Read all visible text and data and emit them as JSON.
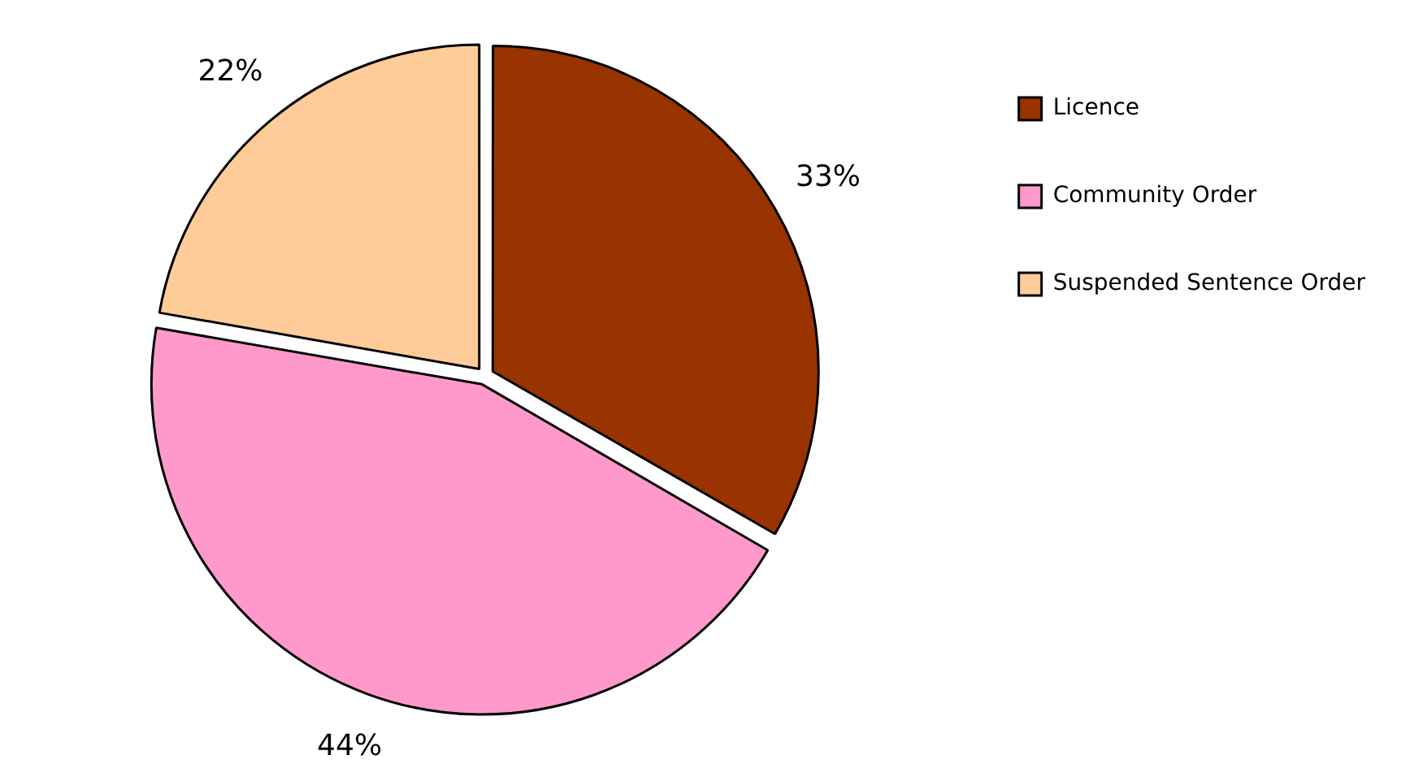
{
  "chart_data": {
    "type": "pie",
    "categories": [
      "Licence",
      "Community Order",
      "Suspended Sentence Order"
    ],
    "values": [
      33,
      44,
      22
    ],
    "colors": [
      "#993300",
      "#ff99cc",
      "#ffcc99"
    ],
    "value_labels": [
      "33%",
      "44%",
      "22%"
    ],
    "legend": "right"
  }
}
